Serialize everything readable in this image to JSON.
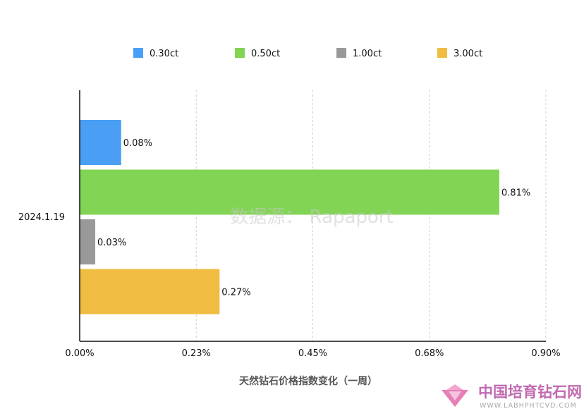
{
  "chart_data": {
    "type": "bar",
    "orientation": "horizontal",
    "categories": [
      "2024.1.19"
    ],
    "series": [
      {
        "name": "0.30ct",
        "values": [
          0.08
        ],
        "label": "0.08%",
        "color": "#4a9ff5"
      },
      {
        "name": "0.50ct",
        "values": [
          0.81
        ],
        "label": "0.81%",
        "color": "#82d455"
      },
      {
        "name": "1.00ct",
        "values": [
          0.03
        ],
        "label": "0.03%",
        "color": "#999999"
      },
      {
        "name": "3.00ct",
        "values": [
          0.27
        ],
        "label": "0.27%",
        "color": "#f0bc41"
      }
    ],
    "xlabel": "天然钻石价格指数变化（一周）",
    "ylabel": "",
    "xlim": [
      0,
      0.9
    ],
    "xticks": [
      0,
      0.225,
      0.45,
      0.675,
      0.9
    ],
    "xtick_labels": [
      "0.00%",
      "0.23%",
      "0.45%",
      "0.68%",
      "0.90%"
    ],
    "grid": "vertical dashed",
    "legend": "top",
    "unit": "%"
  },
  "watermark": "数据源： Rapaport",
  "brand": {
    "name": "中国培育钻石网",
    "url": "WWW.LABHPHTCVD.COM",
    "logo": "diamond-logo-icon"
  }
}
